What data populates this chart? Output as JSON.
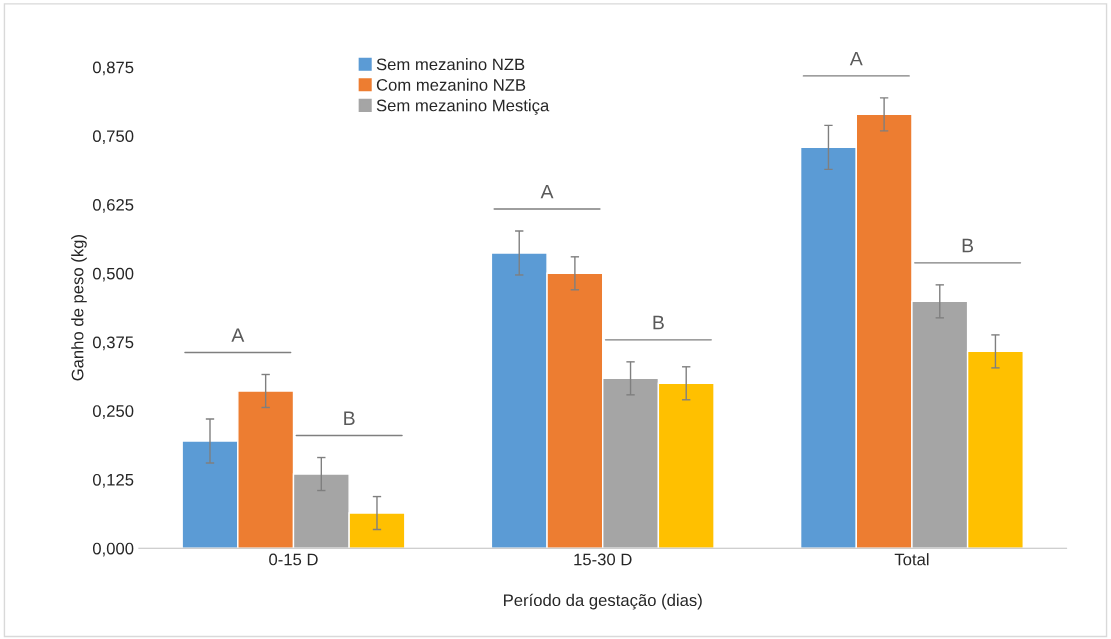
{
  "chart_data": {
    "type": "bar",
    "xlabel": "Período da gestação (dias)",
    "ylabel": "Ganho de peso (kg)",
    "categories": [
      "0-15 D",
      "15-30 D",
      "Total"
    ],
    "series": [
      {
        "name": "Sem mezanino NZB",
        "color": "#5b9bd5",
        "values": [
          0.195,
          0.537,
          0.729
        ],
        "errors": [
          0.04,
          0.04,
          0.04
        ]
      },
      {
        "name": "Com mezanino NZB",
        "color": "#ed7d31",
        "values": [
          0.286,
          0.5,
          0.789
        ],
        "errors": [
          0.03,
          0.03,
          0.03
        ]
      },
      {
        "name": "Sem mezanino Mestiça",
        "color": "#a5a5a5",
        "values": [
          0.135,
          0.309,
          0.449
        ],
        "errors": [
          0.03,
          0.03,
          0.03
        ]
      },
      {
        "color": "#ffc000",
        "values": [
          0.064,
          0.3,
          0.358
        ],
        "errors": [
          0.03,
          0.03,
          0.03
        ]
      }
    ],
    "ylim": [
      0,
      0.875
    ],
    "yticks": [
      {
        "value": 0,
        "label": "0,000"
      },
      {
        "value": 0.125,
        "label": "0,125"
      },
      {
        "value": 0.25,
        "label": "0,250"
      },
      {
        "value": 0.375,
        "label": "0,375"
      },
      {
        "value": 0.5,
        "label": "0,500"
      },
      {
        "value": 0.625,
        "label": "0,625"
      },
      {
        "value": 0.75,
        "label": "0,750"
      },
      {
        "value": 0.875,
        "label": "0,875"
      }
    ],
    "annotations": [
      "A",
      "B",
      "A",
      "B",
      "A",
      "B"
    ],
    "legend": "top",
    "grid": false
  }
}
